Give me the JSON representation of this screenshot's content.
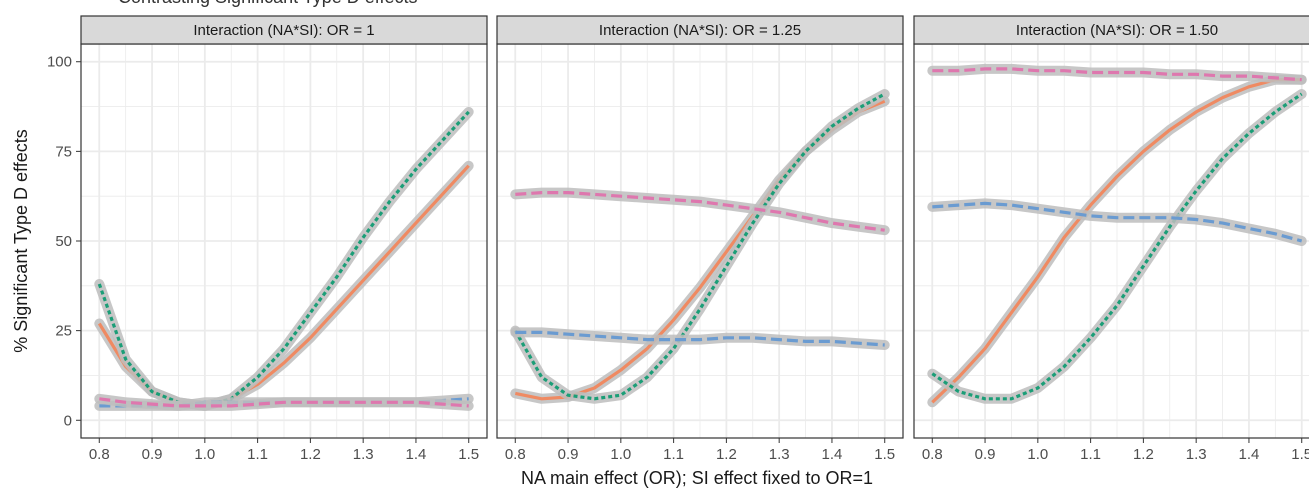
{
  "figure": {
    "top_text": "Contrasting Significant Type D effects",
    "xlabel": "NA main effect (OR); SI effect fixed to OR=1",
    "ylabel": "% Significant Type D effects"
  },
  "colors": {
    "panel_bg": "#ffffff",
    "strip_bg": "#d9d9d9",
    "grid": "#ebebeb",
    "border": "#333333",
    "ribbon": "#bdbdbd",
    "orange": "#ef8a62",
    "teal": "#1b9e77",
    "blue": "#6a9bd1",
    "pink": "#de77ae"
  },
  "chart_data": [
    {
      "type": "line",
      "title": "Interaction (NA*SI): OR = 1",
      "xlim": [
        0.8,
        1.5
      ],
      "ylim": [
        0,
        100
      ],
      "x_ticks": [
        "0.8",
        "0.9",
        "1.0",
        "1.1",
        "1.2",
        "1.3",
        "1.4",
        "1.5"
      ],
      "y_ticks": [
        "0",
        "25",
        "50",
        "75",
        "100"
      ],
      "grid": true,
      "x": [
        0.8,
        0.85,
        0.9,
        0.95,
        1.0,
        1.05,
        1.1,
        1.15,
        1.2,
        1.25,
        1.3,
        1.35,
        1.4,
        1.45,
        1.5
      ],
      "series": [
        {
          "color": "orange",
          "dash": "solid",
          "values": [
            27,
            15,
            8,
            5,
            4,
            6,
            10,
            16,
            23,
            31,
            39,
            47,
            55,
            63,
            71
          ]
        },
        {
          "color": "teal",
          "dash": "dotted",
          "values": [
            38,
            17,
            8,
            5,
            4,
            6,
            12,
            20,
            30,
            40,
            51,
            61,
            70,
            78,
            86
          ]
        },
        {
          "color": "blue",
          "dash": "dashed",
          "values": [
            4,
            4,
            4,
            4,
            5,
            5,
            5,
            5,
            5,
            5,
            5,
            5,
            5,
            5.5,
            6
          ]
        },
        {
          "color": "pink",
          "dash": "dashed",
          "values": [
            6,
            5,
            4.5,
            4,
            4,
            4,
            4.5,
            5,
            5,
            5,
            5,
            5,
            5,
            4.5,
            4
          ]
        }
      ]
    },
    {
      "type": "line",
      "title": "Interaction (NA*SI): OR = 1.25",
      "xlim": [
        0.8,
        1.5
      ],
      "ylim": [
        0,
        100
      ],
      "x_ticks": [
        "0.8",
        "0.9",
        "1.0",
        "1.1",
        "1.2",
        "1.3",
        "1.4",
        "1.5"
      ],
      "y_ticks": [
        "0",
        "25",
        "50",
        "75",
        "100"
      ],
      "grid": true,
      "x": [
        0.8,
        0.85,
        0.9,
        0.95,
        1.0,
        1.05,
        1.1,
        1.15,
        1.2,
        1.25,
        1.3,
        1.35,
        1.4,
        1.45,
        1.5
      ],
      "series": [
        {
          "color": "orange",
          "dash": "solid",
          "values": [
            7.5,
            6,
            6.5,
            9,
            14,
            20,
            28,
            37,
            47,
            57,
            67,
            75,
            81,
            86,
            89
          ]
        },
        {
          "color": "teal",
          "dash": "dotted",
          "values": [
            25,
            12,
            7,
            6,
            7,
            12,
            20,
            31,
            43,
            55,
            66,
            75,
            82,
            87,
            91
          ]
        },
        {
          "color": "blue",
          "dash": "dashed",
          "values": [
            24.5,
            24.5,
            24,
            23.5,
            23,
            22.5,
            22.5,
            22.5,
            23,
            23,
            22.5,
            22,
            22,
            21.5,
            21
          ]
        },
        {
          "color": "pink",
          "dash": "dashed",
          "values": [
            63,
            63.5,
            63.5,
            63,
            62.5,
            62,
            61.5,
            61,
            60,
            59,
            58,
            56.5,
            55,
            54,
            53
          ]
        }
      ]
    },
    {
      "type": "line",
      "title": "Interaction (NA*SI): OR = 1.50",
      "xlim": [
        0.8,
        1.5
      ],
      "ylim": [
        0,
        100
      ],
      "x_ticks": [
        "0.8",
        "0.9",
        "1.0",
        "1.1",
        "1.2",
        "1.3",
        "1.4",
        "1.5"
      ],
      "y_ticks": [
        "0",
        "25",
        "50",
        "75",
        "100"
      ],
      "grid": true,
      "x": [
        0.8,
        0.85,
        0.9,
        0.95,
        1.0,
        1.05,
        1.1,
        1.15,
        1.2,
        1.25,
        1.3,
        1.35,
        1.4,
        1.45,
        1.5
      ],
      "series": [
        {
          "color": "orange",
          "dash": "solid",
          "values": [
            5,
            12,
            20,
            30,
            40,
            51,
            60,
            68,
            75,
            81,
            86,
            90,
            93,
            95,
            95
          ]
        },
        {
          "color": "teal",
          "dash": "dotted",
          "values": [
            13,
            8,
            6,
            6,
            9,
            15,
            23,
            32,
            43,
            54,
            64,
            73,
            80,
            86,
            91
          ]
        },
        {
          "color": "blue",
          "dash": "dashed",
          "values": [
            59.5,
            60,
            60.5,
            60,
            59,
            58,
            57,
            56.5,
            56.5,
            56.5,
            56,
            55,
            53.5,
            52,
            50
          ]
        },
        {
          "color": "pink",
          "dash": "dashed",
          "values": [
            97.5,
            97.5,
            98,
            98,
            97.5,
            97.5,
            97,
            97,
            97,
            96.5,
            96.5,
            96,
            96,
            95.5,
            95
          ]
        }
      ]
    }
  ]
}
